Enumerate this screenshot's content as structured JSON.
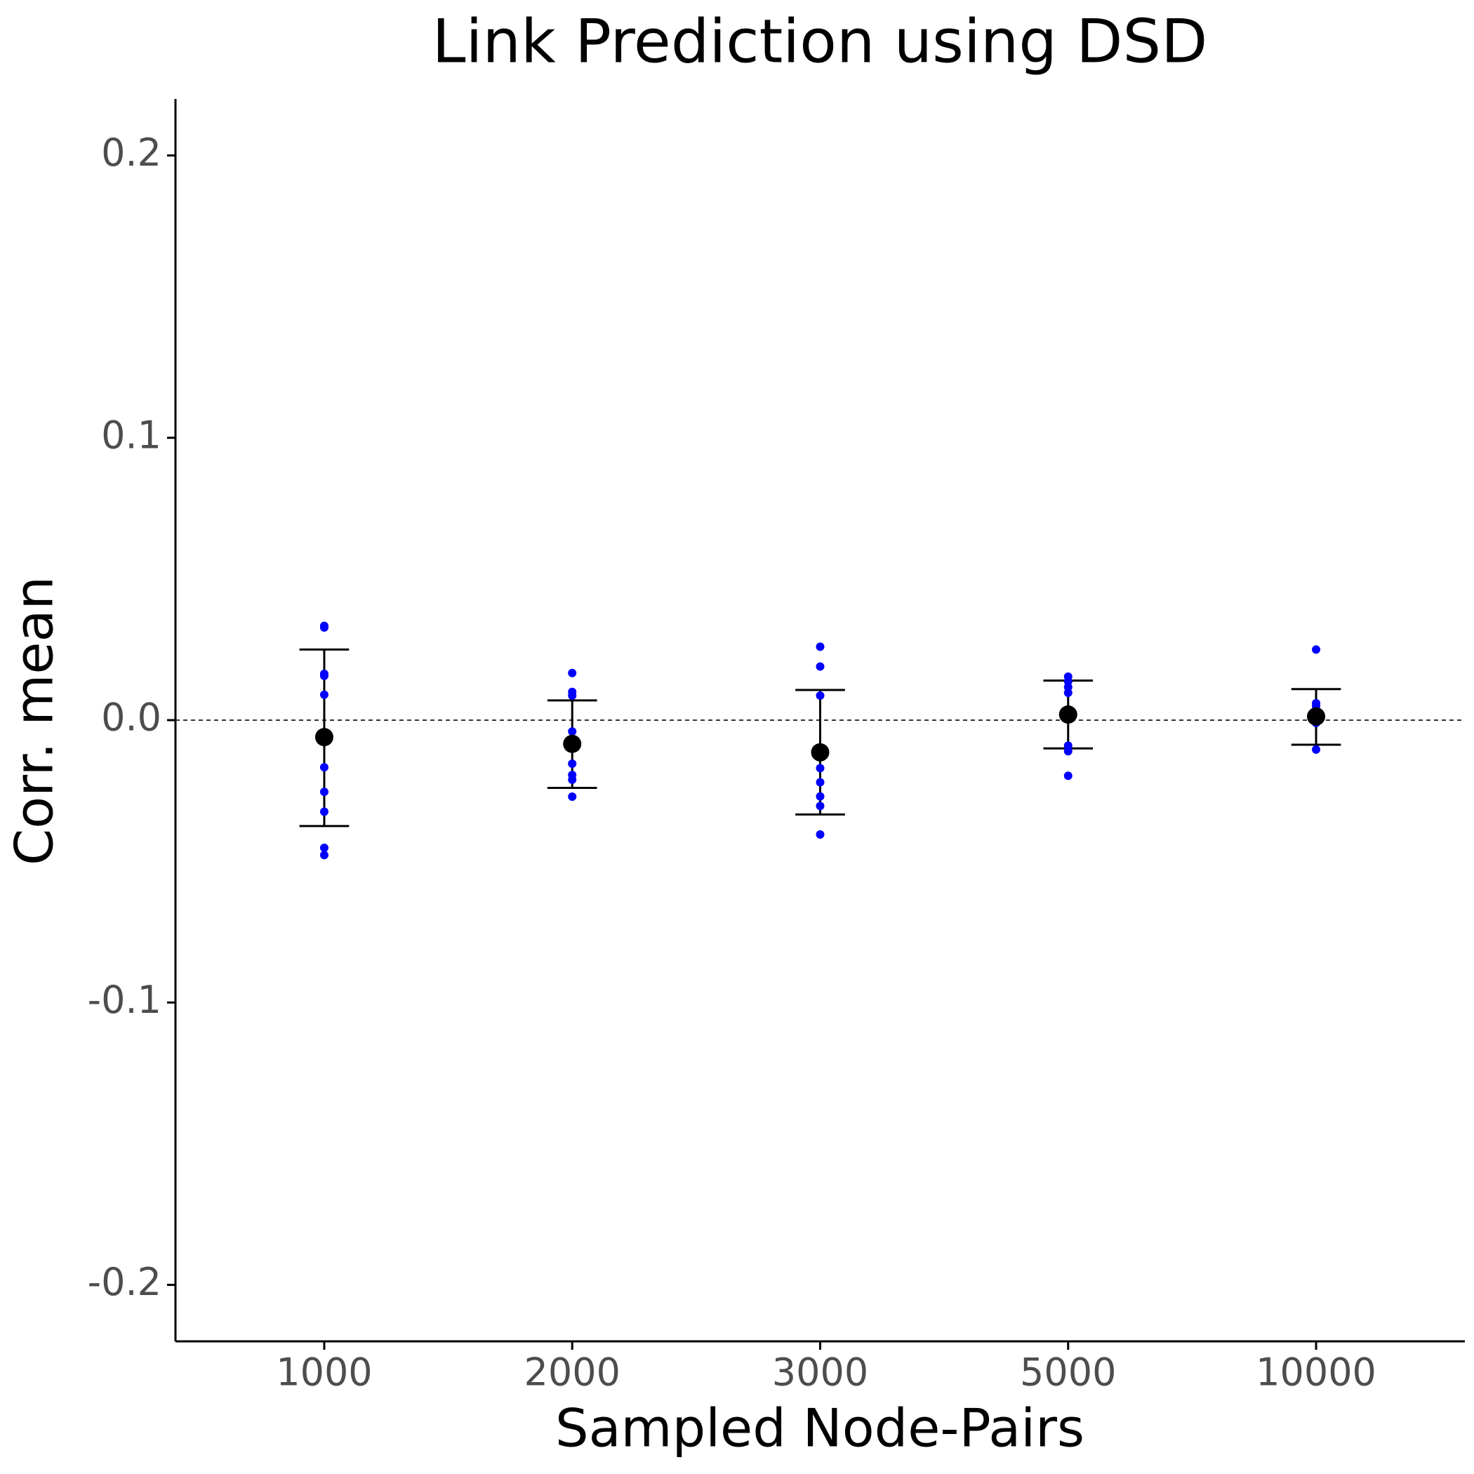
{
  "chart_data": {
    "type": "errorbar",
    "title": "Link Prediction using DSD",
    "x_label": "Sampled Node-Pairs",
    "y_label": "Corr. mean",
    "categories": [
      "1000",
      "2000",
      "3000",
      "5000",
      "10000"
    ],
    "means": [
      -0.006,
      -0.0084,
      -0.0114,
      0.002,
      0.0013
    ],
    "error_low": [
      -0.0375,
      -0.024,
      -0.0334,
      -0.01,
      -0.0087
    ],
    "error_high": [
      0.025,
      0.007,
      0.0107,
      0.014,
      0.011
    ],
    "points": [
      [
        0.0334,
        0.0328,
        0.0164,
        0.0157,
        0.009,
        -0.0167,
        -0.0254,
        -0.0324,
        -0.0452,
        -0.0478
      ],
      [
        0.0167,
        0.01,
        0.0087,
        -0.004,
        -0.009,
        -0.0154,
        -0.0194,
        -0.0211,
        -0.0271
      ],
      [
        0.026,
        0.019,
        0.0087,
        -0.0114,
        -0.017,
        -0.022,
        -0.027,
        -0.0304,
        -0.0405
      ],
      [
        0.0154,
        0.0137,
        0.0117,
        0.0097,
        0.0037,
        0.0023,
        -0.009,
        -0.011,
        -0.0197
      ],
      [
        0.025,
        0.006,
        0.005,
        0.0037,
        0.0023,
        0.001,
        -0.001,
        -0.0104
      ]
    ],
    "mean_color": "#000000",
    "point_color": "#0000ff",
    "reference_line": 0,
    "ylim": [
      -0.22,
      0.22
    ],
    "yticks": [
      -0.2,
      -0.1,
      {
        "value": 0,
        "label": "0.0"
      },
      0.1,
      0.2
    ]
  }
}
